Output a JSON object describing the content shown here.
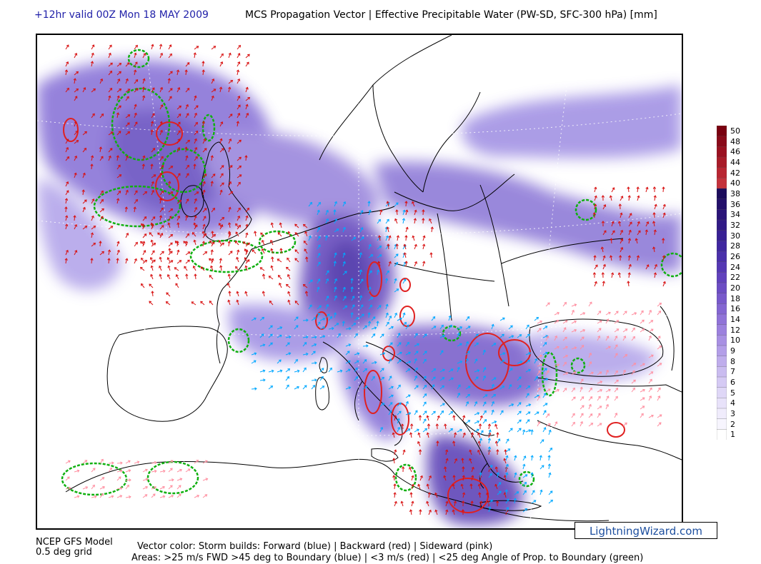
{
  "header": {
    "run_label": "+12hr valid 00Z Mon 18 MAY 2009",
    "product_title": "MCS Propagation Vector | Effective Precipitable Water (PW-SD, SFC-300 hPa) [mm]"
  },
  "colorbar": {
    "labels": [
      "50",
      "48",
      "46",
      "44",
      "42",
      "40",
      "38",
      "36",
      "34",
      "32",
      "30",
      "28",
      "26",
      "24",
      "22",
      "20",
      "18",
      "16",
      "14",
      "12",
      "10",
      "9",
      "8",
      "7",
      "6",
      "5",
      "4",
      "3",
      "2",
      "1"
    ],
    "colors": [
      "#7a0010",
      "#8a0a1a",
      "#9a1020",
      "#a81b28",
      "#b82632",
      "#c4323c",
      "#1c0c5c",
      "#23106a",
      "#2a1478",
      "#311a86",
      "#382094",
      "#4027a0",
      "#4a30aa",
      "#5538b4",
      "#6142bd",
      "#6c4dc4",
      "#7859cb",
      "#8466d2",
      "#9073d8",
      "#9c81de",
      "#a890e3",
      "#b39ee8",
      "#bfadec",
      "#cabcf0",
      "#d5caf4",
      "#dfd7f7",
      "#e8e2fa",
      "#f0ecfc",
      "#f7f5fe",
      "#ffffff"
    ]
  },
  "badge": "LightningWizard.com",
  "footer": {
    "model": "NCEP GFS Model",
    "grid": "0.5 deg grid",
    "vector_legend": "Vector color: Storm builds:  Forward (blue) | Backward (red) | Sideward (pink)",
    "areas_legend": "Areas: >25 m/s FWD >45 deg to Boundary (blue) | <3 m/s (red) | <25 deg Angle of Prop. to Boundary (green)"
  },
  "legend_colors": {
    "forward": "#00a8ff",
    "backward": "#d81010",
    "sideward": "#ff8fa0",
    "area_fwd": "#0000ff",
    "area_slow": "#e02020",
    "area_angle": "#10b010"
  }
}
